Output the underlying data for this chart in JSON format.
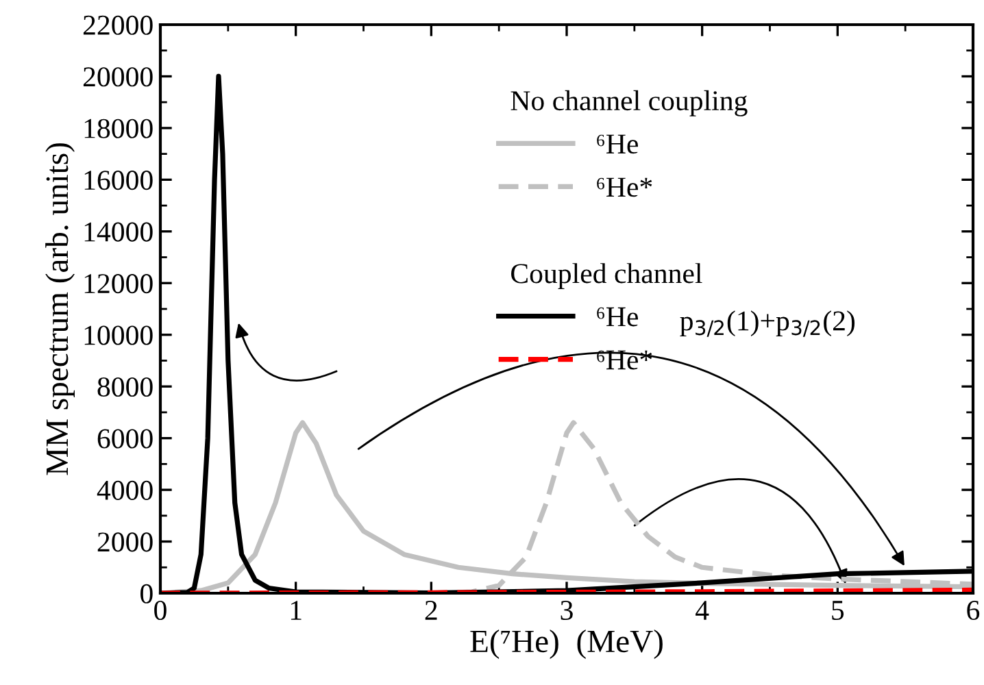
{
  "chart_data": {
    "type": "line",
    "xlabel": "E(⁷He)  (MeV)",
    "ylabel": "MM spectrum (arb. units)",
    "xlim": [
      0,
      6
    ],
    "xticks": [
      0,
      1,
      2,
      3,
      4,
      5,
      6
    ],
    "ylim": [
      0,
      22000
    ],
    "yticks": [
      0,
      2000,
      4000,
      6000,
      8000,
      10000,
      12000,
      14000,
      16000,
      18000,
      20000,
      22000
    ],
    "annotations": [
      "No channel coupling",
      "Coupled channel",
      "p$_{3/2}$(1)+p$_{3/2}$(2)"
    ],
    "legend": "top right",
    "grid": false,
    "series": [
      {
        "name": "⁶He",
        "color": "#c0c0c0",
        "line_style": "solid",
        "x": [
          0,
          0.3,
          0.5,
          0.7,
          0.85,
          1.0,
          1.05,
          1.15,
          1.3,
          1.5,
          1.8,
          2.2,
          2.6,
          3.0,
          3.5,
          4.0,
          5.0,
          6.0
        ],
        "values": [
          0,
          100,
          400,
          1500,
          3500,
          6200,
          6600,
          5800,
          3800,
          2400,
          1500,
          1000,
          750,
          600,
          450,
          380,
          300,
          250
        ]
      },
      {
        "name": "⁶He*",
        "color": "#c0c0c0",
        "line_style": "dashed",
        "x": [
          0,
          2.0,
          2.3,
          2.5,
          2.7,
          2.85,
          3.0,
          3.05,
          3.2,
          3.4,
          3.6,
          3.8,
          4.0,
          4.5,
          5.0,
          6.0
        ],
        "values": [
          0,
          0,
          50,
          300,
          1400,
          3500,
          6200,
          6600,
          5600,
          3500,
          2200,
          1400,
          1000,
          700,
          550,
          350
        ]
      },
      {
        "name": "⁶He",
        "color": "#000000",
        "line_style": "solid",
        "x": [
          0,
          0.2,
          0.25,
          0.3,
          0.35,
          0.4,
          0.43,
          0.46,
          0.5,
          0.55,
          0.6,
          0.7,
          0.8,
          1.0,
          2.0,
          3.0,
          4.0,
          5.0,
          6.0
        ],
        "values": [
          0,
          30,
          200,
          1500,
          6000,
          16000,
          20000,
          17000,
          9000,
          3500,
          1500,
          500,
          200,
          50,
          10,
          100,
          400,
          750,
          850
        ]
      },
      {
        "name": "⁶He*",
        "color": "#ff0000",
        "line_style": "dashed",
        "x": [
          0,
          1.0,
          2.0,
          3.0,
          4.0,
          5.0,
          6.0
        ],
        "values": [
          0,
          10,
          20,
          40,
          60,
          90,
          120
        ]
      }
    ]
  }
}
